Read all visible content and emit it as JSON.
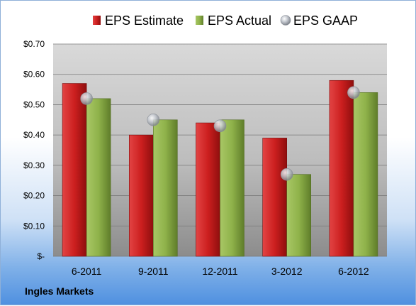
{
  "company": "Ingles Markets",
  "chart_data": {
    "type": "bar",
    "categories": [
      "6-2011",
      "9-2011",
      "12-2011",
      "3-2012",
      "6-2012"
    ],
    "series": [
      {
        "name": "EPS Estimate",
        "type": "bar",
        "color": "#cc1f1f",
        "values": [
          0.57,
          0.4,
          0.44,
          0.39,
          0.58
        ]
      },
      {
        "name": "EPS Actual",
        "type": "bar",
        "color": "#8fb24a",
        "values": [
          0.52,
          0.45,
          0.45,
          0.27,
          0.54
        ]
      },
      {
        "name": "EPS GAAP",
        "type": "scatter",
        "color": "#b8bcc4",
        "values": [
          0.52,
          0.45,
          0.43,
          0.27,
          0.54
        ]
      }
    ],
    "ylim": [
      0,
      0.7
    ],
    "yticks": [
      0,
      0.1,
      0.2,
      0.3,
      0.4,
      0.5,
      0.6,
      0.7
    ],
    "ytick_labels": [
      "$-",
      "$0.10",
      "$0.20",
      "$0.30",
      "$0.40",
      "$0.50",
      "$0.60",
      "$0.70"
    ],
    "grid": true,
    "legend": "top"
  }
}
